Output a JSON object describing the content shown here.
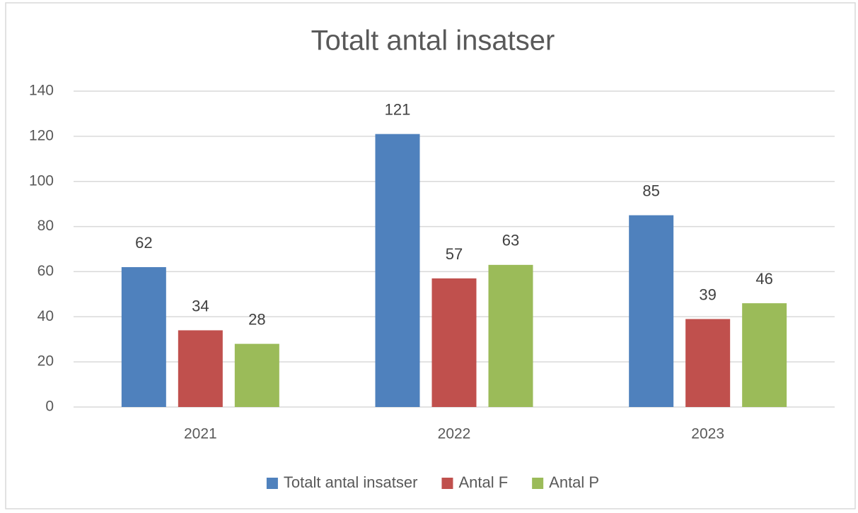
{
  "chart_data": {
    "type": "bar",
    "title": "Totalt antal insatser",
    "categories": [
      "2021",
      "2022",
      "2023"
    ],
    "series": [
      {
        "name": "Totalt antal insatser",
        "color": "#4f81bd",
        "values": [
          62,
          121,
          85
        ]
      },
      {
        "name": "Antal F",
        "color": "#c0504d",
        "values": [
          34,
          57,
          39
        ]
      },
      {
        "name": "Antal P",
        "color": "#9bbb59",
        "values": [
          28,
          63,
          46
        ]
      }
    ],
    "ylim": [
      0,
      140
    ],
    "yticks": [
      0,
      20,
      40,
      60,
      80,
      100,
      120,
      140
    ],
    "grid": true,
    "legend": "bottom"
  }
}
